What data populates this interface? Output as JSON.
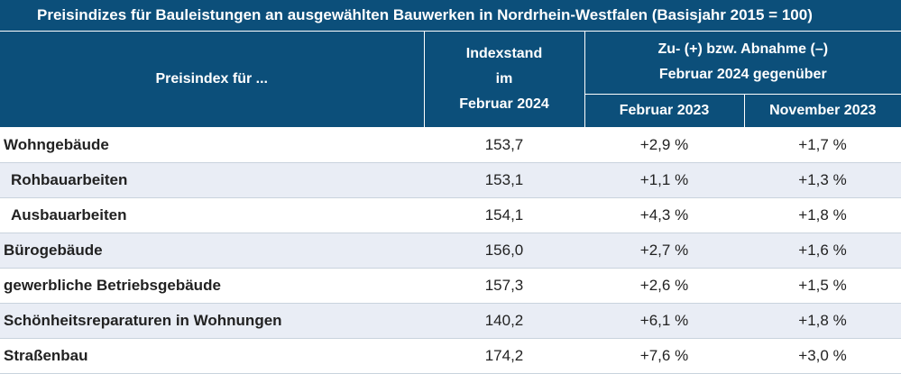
{
  "title": "Preisindizes für Bauleistungen an ausgewählten Bauwerken in Nordrhein-Westfalen (Basisjahr 2015 = 100)",
  "headers": {
    "col1": "Preisindex für ...",
    "col2_lines": [
      "Indexstand",
      "im",
      "Februar 2024"
    ],
    "change_lines": [
      "Zu- (+) bzw. Abnahme (–)",
      "Februar 2024 gegenüber"
    ],
    "sub1": "Februar 2023",
    "sub2": "November 2023"
  },
  "rows": [
    {
      "label": "Wohngebäude",
      "index": "153,7",
      "feb2023": "+2,9 %",
      "nov2023": "+1,7 %"
    },
    {
      "label": "Rohbauarbeiten",
      "index": "153,1",
      "feb2023": "+1,1 %",
      "nov2023": "+1,3 %"
    },
    {
      "label": "Ausbauarbeiten",
      "index": "154,1",
      "feb2023": "+4,3 %",
      "nov2023": "+1,8 %"
    },
    {
      "label": "Bürogebäude",
      "index": "156,0",
      "feb2023": "+2,7 %",
      "nov2023": "+1,6 %"
    },
    {
      "label": "gewerbliche Betriebsgebäude",
      "index": "157,3",
      "feb2023": "+2,6 %",
      "nov2023": "+1,5 %"
    },
    {
      "label": "Schönheitsreparaturen in Wohnungen",
      "index": "140,2",
      "feb2023": "+6,1 %",
      "nov2023": "+1,8 %"
    },
    {
      "label": "Straßenbau",
      "index": "174,2",
      "feb2023": "+7,6 %",
      "nov2023": "+3,0 %"
    }
  ]
}
